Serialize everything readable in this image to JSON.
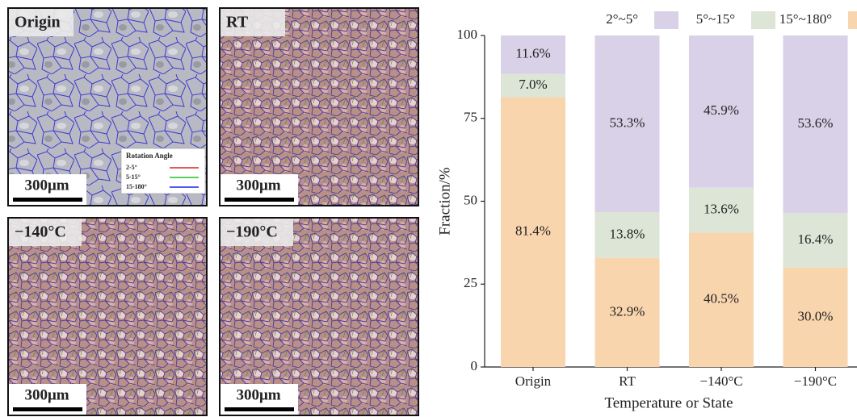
{
  "panels": [
    {
      "label": "Origin",
      "scale_bar": "300μm"
    },
    {
      "label": "RT",
      "scale_bar": "300μm"
    },
    {
      "label": "−140°C",
      "scale_bar": "300μm"
    },
    {
      "label": "−190°C",
      "scale_bar": "300μm"
    }
  ],
  "rotation_legend": {
    "title": "Rotation Angle",
    "items": [
      "2-5°",
      "5-15°",
      "15-180°"
    ]
  },
  "chart_data": {
    "type": "bar",
    "stacked": true,
    "xlabel": "Temperature or State",
    "ylabel": "Fraction/%",
    "categories": [
      "Origin",
      "RT",
      "−140°C",
      "−190°C"
    ],
    "series": [
      {
        "name": "2°~5°",
        "color": "#d9d1e8",
        "values": [
          11.6,
          53.3,
          45.9,
          53.6
        ],
        "value_labels": [
          "11.6%",
          "53.3%",
          "45.9%",
          "53.6%"
        ]
      },
      {
        "name": "5°~15°",
        "color": "#dde5d6",
        "values": [
          7,
          13.8,
          13.6,
          16.4
        ],
        "value_labels": [
          "7.0%",
          "13.8%",
          "13.6%",
          "16.4%"
        ]
      },
      {
        "name": "15°~180°",
        "color": "#f9d5ae",
        "values": [
          81.4,
          32.9,
          40.5,
          30
        ],
        "value_labels": [
          "81.4%",
          "32.9%",
          "40.5%",
          "30.0%"
        ]
      }
    ],
    "ylim": [
      0,
      100
    ],
    "yticks": [
      0,
      25,
      50,
      75,
      100
    ],
    "grid": false,
    "legend": "top"
  }
}
